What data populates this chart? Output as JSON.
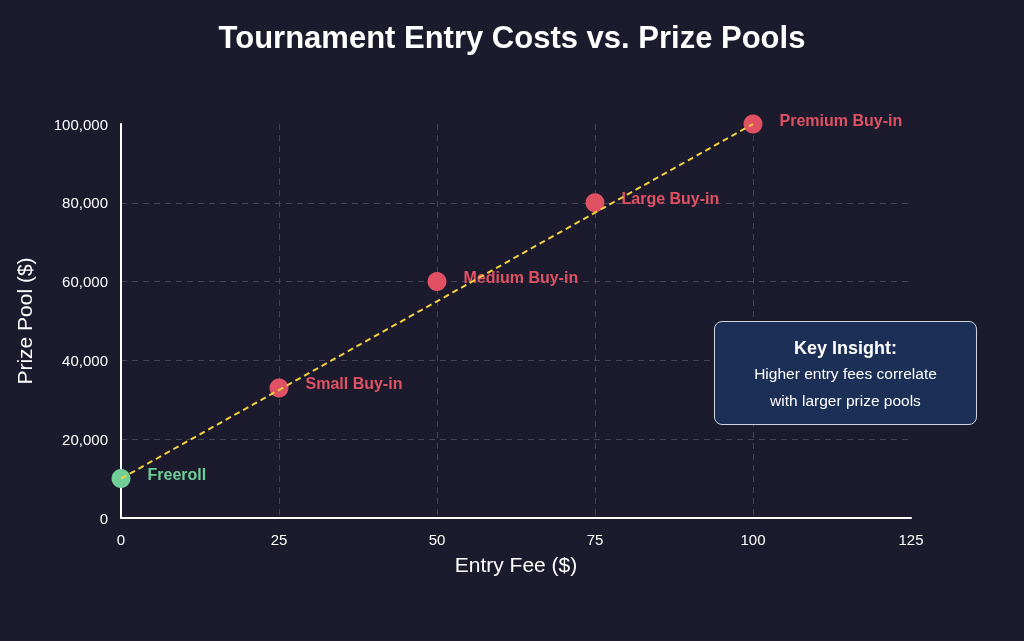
{
  "chart_data": {
    "type": "scatter",
    "title": "Tournament Entry Costs vs. Prize Pools",
    "xlabel": "Entry Fee ($)",
    "ylabel": "Prize Pool ($)",
    "series": [
      {
        "name": "Freeroll",
        "color": "#6fcf97",
        "x": [
          0
        ],
        "values": [
          10000
        ]
      },
      {
        "name": "Small Buy-in",
        "color": "#e05263",
        "x": [
          25
        ],
        "values": [
          33000
        ]
      },
      {
        "name": "Medium Buy-in",
        "color": "#e05263",
        "x": [
          50
        ],
        "values": [
          60000
        ]
      },
      {
        "name": "Large Buy-in",
        "color": "#e05263",
        "x": [
          75
        ],
        "values": [
          80000
        ]
      },
      {
        "name": "Premium Buy-in",
        "color": "#e05263",
        "x": [
          100
        ],
        "values": [
          100000
        ]
      },
      {
        "type": "line",
        "color": "#f4d03f",
        "x": [
          0,
          100
        ],
        "values": [
          10000,
          100000
        ],
        "marker": "none",
        "line_style": "dashed"
      }
    ],
    "xlim": [
      0,
      125
    ],
    "xticks": [
      0,
      25,
      50,
      75,
      100,
      125
    ],
    "ylim": [
      0,
      100000
    ],
    "yticks": [
      0,
      {
        "value": 20000,
        "label": "20,000"
      },
      {
        "value": 40000,
        "label": "40,000"
      },
      {
        "value": 60000,
        "label": "60,000"
      },
      {
        "value": 80000,
        "label": "80,000"
      },
      {
        "value": 100000,
        "label": "100,000"
      }
    ],
    "grid": true,
    "legend": false,
    "marker": "circle",
    "annotations": [
      "Key Insight:",
      "Higher entry fees correlate with larger prize pools"
    ]
  }
}
